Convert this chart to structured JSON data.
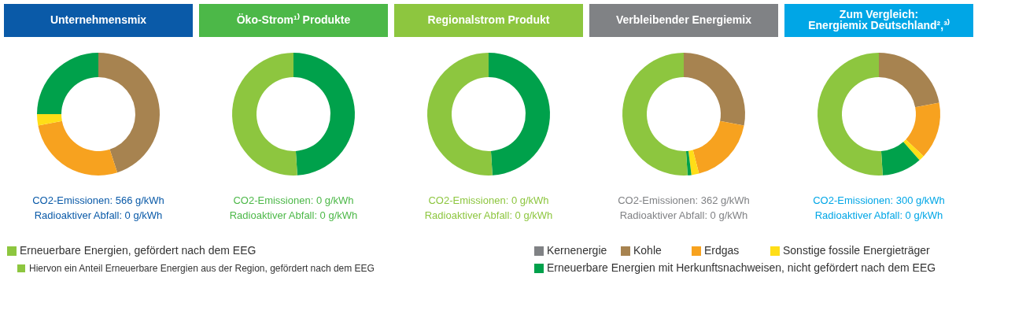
{
  "chart_data": [
    {
      "type": "donut",
      "title": "Unternehmensmix",
      "categories": [
        "Kernenergie",
        "Kohle",
        "Erdgas",
        "Sonstige fossile Energieträger",
        "Erneuerbare Energien mit Herkunftsnachweisen, nicht gefördert nach dem EEG"
      ],
      "values": [
        0,
        45,
        27,
        3,
        25
      ],
      "colors": [
        "#808285",
        "#a78350",
        "#f7a21f",
        "#ffde17",
        "#00a14b"
      ],
      "legend": "bottom",
      "annotations": [
        "CO2-Emissionen: 566 g/kWh",
        "Radioaktiver Abfall:  0 g/kWh"
      ]
    },
    {
      "type": "donut",
      "title": "Öko-Strom¹⁾ Produkte",
      "categories": [
        null,
        "Erneuerbare Energien, gefördert nach dem EEG"
      ],
      "values": [
        49,
        51
      ],
      "colors": [
        "#00a14b",
        "#8dc63f"
      ],
      "legend": "bottom",
      "annotations": [
        "CO2-Emissionen: 0 g/kWh",
        "Radioaktiver Abfall: 0 g/kWh"
      ]
    },
    {
      "type": "donut",
      "title": "Regionalstrom Produkt",
      "categories": [
        null,
        "Hiervon ein Anteil Erneuerbare Energien aus der Region, gefördert nach dem EEG"
      ],
      "values": [
        49,
        51
      ],
      "colors": [
        "#00a14b",
        "#8dc63f"
      ],
      "legend": "bottom",
      "annotations": [
        "CO2-Emissionen: 0 g/kWh",
        "Radioaktiver Abfall: 0 g/kWh"
      ]
    },
    {
      "type": "donut",
      "title": "Verbleibender Energiemix",
      "categories": [
        null,
        null,
        null,
        null,
        null
      ],
      "values": [
        28,
        18,
        2,
        1,
        51
      ],
      "colors": [
        "#a78350",
        "#f7a21f",
        "#ffde17",
        "#00a14b",
        "#8dc63f"
      ],
      "annotations": [
        "CO2-Emissionen: 362 g/kWh",
        "Radioaktiver Abfall: 0 g/kWh"
      ]
    },
    {
      "type": "donut",
      "title": "Zum Vergleich:\nEnergiemix Deutschland²,³⁾",
      "categories": [
        null,
        null,
        null,
        null,
        null
      ],
      "values": [
        22,
        15,
        1.5,
        10.5,
        51
      ],
      "colors": [
        "#a78350",
        "#f7a21f",
        "#ffde17",
        "#00a14b",
        "#8dc63f"
      ],
      "annotations": [
        "CO2-Emissionen: 300 g/kWh",
        "Radioaktiver Abfall: 0 g/kWh"
      ]
    }
  ]
}
